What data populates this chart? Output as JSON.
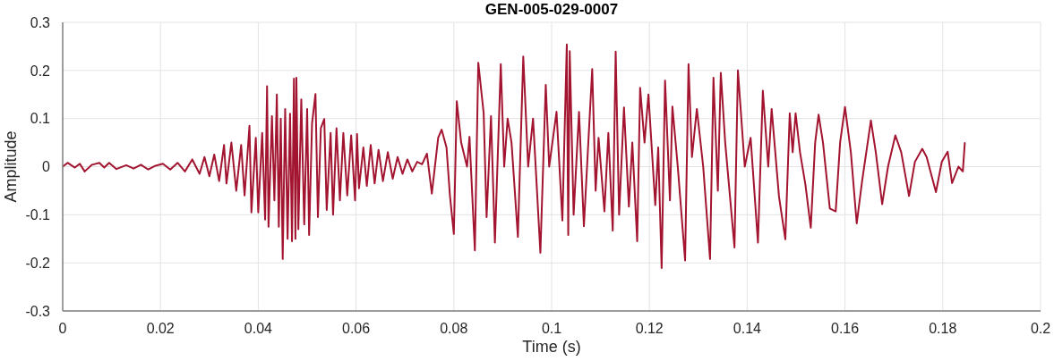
{
  "chart_data": {
    "type": "line",
    "title": "GEN-005-029-0007",
    "xlabel": "Time (s)",
    "ylabel": "Amplitude",
    "xlim": [
      0,
      0.2
    ],
    "xticks": [
      0,
      0.02,
      0.04,
      0.06,
      0.08,
      0.1,
      0.12,
      0.14,
      0.16,
      0.18,
      0.2
    ],
    "ylim": [
      -0.3,
      0.3
    ],
    "yticks": [
      -0.3,
      -0.2,
      -0.1,
      0,
      0.1,
      0.2,
      0.3
    ],
    "grid": true,
    "series": [
      {
        "color": "#a2142f",
        "x": [
          0,
          0.001,
          0.0025,
          0.0035,
          0.0045,
          0.006,
          0.0075,
          0.0085,
          0.0095,
          0.011,
          0.013,
          0.0145,
          0.016,
          0.0175,
          0.019,
          0.0205,
          0.022,
          0.0235,
          0.025,
          0.0265,
          0.028,
          0.029,
          0.03,
          0.031,
          0.032,
          0.033,
          0.0335,
          0.0345,
          0.0355,
          0.0365,
          0.0372,
          0.0382,
          0.0386,
          0.0395,
          0.04,
          0.0408,
          0.0414,
          0.0418,
          0.0421,
          0.0428,
          0.0433,
          0.0438,
          0.0442,
          0.0446,
          0.045,
          0.0455,
          0.046,
          0.0465,
          0.0469,
          0.0473,
          0.0476,
          0.0478,
          0.0482,
          0.0488,
          0.0494,
          0.05,
          0.0504,
          0.051,
          0.0517,
          0.0522,
          0.0528,
          0.0535,
          0.054,
          0.0548,
          0.0553,
          0.056,
          0.0567,
          0.0574,
          0.0582,
          0.059,
          0.0598,
          0.0602,
          0.0606,
          0.0615,
          0.0622,
          0.063,
          0.0638,
          0.0646,
          0.0655,
          0.0665,
          0.0675,
          0.0685,
          0.0695,
          0.0705,
          0.0715,
          0.0725,
          0.0735,
          0.0745,
          0.0755,
          0.0768,
          0.0775,
          0.0785,
          0.0792,
          0.08,
          0.0806,
          0.0815,
          0.0827,
          0.0832,
          0.0843,
          0.085,
          0.0861,
          0.0867,
          0.0876,
          0.0884,
          0.0896,
          0.0903,
          0.091,
          0.0918,
          0.0931,
          0.0942,
          0.0952,
          0.0962,
          0.0977,
          0.0988,
          0.0995,
          0.101,
          0.1022,
          0.1031,
          0.1034,
          0.1037,
          0.1045,
          0.1056,
          0.1066,
          0.1083,
          0.109,
          0.1096,
          0.1108,
          0.1116,
          0.1125,
          0.1131,
          0.1138,
          0.1148,
          0.1158,
          0.1165,
          0.1175,
          0.1181,
          0.119,
          0.1198,
          0.1212,
          0.1218,
          0.1225,
          0.1232,
          0.1242,
          0.1247,
          0.1258,
          0.1273,
          0.128,
          0.1287,
          0.1297,
          0.131,
          0.1324,
          0.1331,
          0.134,
          0.1346,
          0.1355,
          0.1374,
          0.1381,
          0.1395,
          0.1407,
          0.1422,
          0.1432,
          0.1443,
          0.145,
          0.1465,
          0.1478,
          0.1487,
          0.1493,
          0.1499,
          0.1508,
          0.1519,
          0.153,
          0.1539,
          0.1546,
          0.1555,
          0.1569,
          0.1581,
          0.159,
          0.16,
          0.1612,
          0.1624,
          0.1635,
          0.1653,
          0.1663,
          0.1676,
          0.1688,
          0.1703,
          0.1715,
          0.1731,
          0.1743,
          0.1758,
          0.1767,
          0.1786,
          0.1798,
          0.181,
          0.1819,
          0.1832,
          0.1841,
          0.1845
        ],
        "values": [
          0,
          0.008,
          -0.002,
          0.006,
          -0.01,
          0.004,
          0.008,
          -0.002,
          0.008,
          -0.005,
          0.003,
          -0.004,
          0.004,
          -0.006,
          0.002,
          0.006,
          -0.006,
          0.008,
          -0.01,
          0.015,
          -0.015,
          0.02,
          -0.02,
          0.025,
          -0.03,
          0.045,
          -0.035,
          0.05,
          -0.05,
          0.045,
          -0.06,
          0.085,
          -0.095,
          0.06,
          -0.095,
          0.07,
          -0.11,
          0.167,
          -0.125,
          0.105,
          -0.07,
          0.15,
          -0.125,
          0.1,
          -0.192,
          0.12,
          -0.15,
          0.11,
          -0.155,
          0.183,
          -0.15,
          0.185,
          -0.13,
          0.14,
          -0.12,
          0.12,
          -0.142,
          0.09,
          0.151,
          -0.105,
          0.08,
          0.099,
          -0.09,
          0.07,
          -0.1,
          0.08,
          -0.07,
          0.07,
          -0.06,
          0.065,
          -0.07,
          0.068,
          -0.045,
          0.04,
          -0.04,
          0.045,
          -0.035,
          0.035,
          -0.03,
          0.03,
          -0.025,
          0.02,
          -0.015,
          0.015,
          -0.01,
          0.01,
          0.005,
          0.027,
          -0.056,
          0.06,
          0.077,
          0.04,
          -0.06,
          -0.14,
          0.136,
          0.05,
          0,
          0.062,
          -0.174,
          0.216,
          0.111,
          -0.105,
          0.105,
          -0.158,
          0.213,
          0,
          0.1,
          0.05,
          -0.146,
          0.229,
          0,
          0.1,
          -0.179,
          0.17,
          0,
          0.114,
          -0.112,
          0.254,
          -0.142,
          0.24,
          -0.1,
          0.114,
          -0.124,
          0.203,
          -0.05,
          0.06,
          -0.093,
          0.07,
          -0.133,
          0.239,
          -0.1,
          0.123,
          -0.083,
          0.05,
          -0.155,
          0.164,
          0.05,
          0.15,
          -0.08,
          0.04,
          -0.211,
          0.179,
          -0.07,
          0.125,
          0,
          -0.195,
          0.213,
          0.02,
          0.12,
          0,
          -0.192,
          0.185,
          -0.05,
          0.195,
          0.05,
          -0.168,
          0.2,
          0,
          0.06,
          -0.158,
          0.158,
          0,
          0.12,
          -0.062,
          -0.151,
          0.111,
          0.03,
          0.111,
          0.03,
          -0.037,
          -0.127,
          0.05,
          0.108,
          0.05,
          -0.087,
          -0.093,
          0.05,
          0.124,
          0.03,
          -0.118,
          -0.03,
          0.096,
          0.03,
          -0.078,
          0,
          0.065,
          0.03,
          -0.061,
          0.01,
          0.037,
          0.02,
          -0.053,
          0.01,
          0.031,
          -0.034,
          0,
          -0.01,
          0.049
        ]
      }
    ]
  }
}
